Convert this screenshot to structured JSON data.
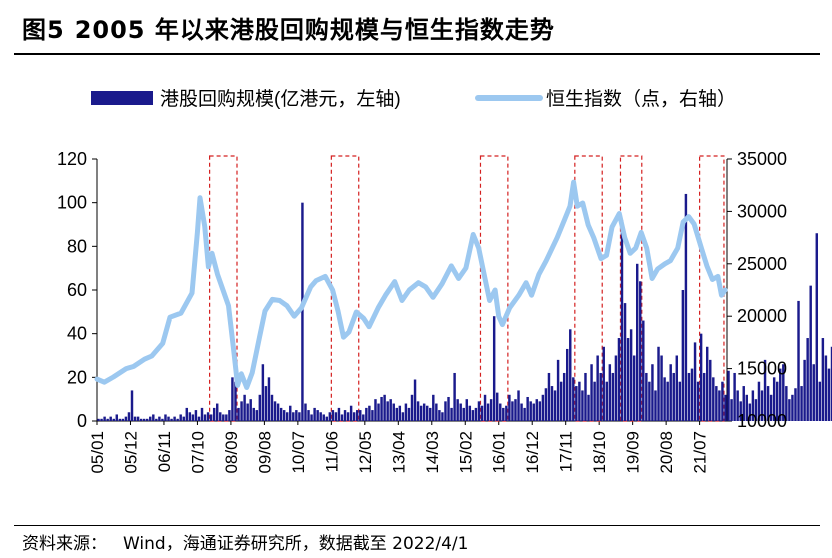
{
  "figure_label": "图5",
  "title": "2005 年以来港股回购规模与恒生指数走势",
  "source_label": "资料来源：",
  "source_text": "Wind，海通证券研究所，数据截至 2022/4/1",
  "colors": {
    "bar": "#1a1a8c",
    "line": "#9cc8f0",
    "box": "#d42020",
    "axis": "#000000"
  },
  "chart_data": {
    "type": "bar+line",
    "title": "2005 年以来港股回购规模与恒生指数走势",
    "legend_position": "top",
    "x_ticks": [
      "05/01",
      "05/12",
      "06/11",
      "07/10",
      "08/09",
      "09/08",
      "10/07",
      "11/06",
      "12/05",
      "13/04",
      "14/03",
      "15/02",
      "16/01",
      "16/12",
      "17/11",
      "18/10",
      "19/09",
      "20/08",
      "21/07"
    ],
    "x_start": 2005.0,
    "x_end": 2022.25,
    "y_left": {
      "label": "港股回购规模(亿港元，左轴)",
      "ticks": [
        0,
        20,
        40,
        60,
        80,
        100,
        120
      ],
      "range": [
        0,
        120
      ]
    },
    "y_right": {
      "label": "恒生指数（点，右轴）",
      "ticks": [
        10000,
        15000,
        20000,
        25000,
        30000,
        35000
      ],
      "range": [
        10000,
        35000
      ]
    },
    "series": [
      {
        "name": "港股回购规模(亿港元，左轴)",
        "kind": "bar",
        "axis": "left",
        "values": [
          1,
          1,
          2,
          1,
          2,
          1,
          3,
          1,
          1,
          2,
          4,
          14,
          2,
          2,
          1,
          1,
          1,
          2,
          3,
          1,
          2,
          1,
          3,
          2,
          1,
          2,
          1,
          3,
          2,
          6,
          4,
          3,
          5,
          2,
          6,
          3,
          4,
          3,
          6,
          8,
          4,
          3,
          3,
          5,
          20,
          18,
          6,
          9,
          12,
          8,
          10,
          6,
          5,
          12,
          26,
          16,
          20,
          12,
          9,
          8,
          6,
          5,
          4,
          7,
          4,
          5,
          4,
          100,
          8,
          5,
          3,
          6,
          5,
          4,
          3,
          2,
          4,
          5,
          4,
          6,
          3,
          5,
          4,
          7,
          4,
          5,
          5,
          3,
          6,
          7,
          5,
          10,
          8,
          11,
          12,
          9,
          10,
          8,
          6,
          7,
          4,
          8,
          6,
          12,
          19,
          9,
          7,
          8,
          7,
          6,
          12,
          8,
          5,
          4,
          9,
          11,
          6,
          22,
          10,
          8,
          6,
          10,
          7,
          5,
          6,
          9,
          7,
          12,
          8,
          10,
          48,
          13,
          8,
          6,
          7,
          12,
          9,
          10,
          14,
          8,
          6,
          11,
          9,
          8,
          10,
          9,
          12,
          15,
          22,
          16,
          14,
          28,
          18,
          22,
          33,
          42,
          20,
          16,
          18,
          14,
          22,
          12,
          26,
          18,
          30,
          22,
          34,
          18,
          26,
          22,
          30,
          38,
          92,
          54,
          38,
          42,
          30,
          72,
          64,
          46,
          22,
          18,
          26,
          14,
          34,
          30,
          20,
          18,
          26,
          22,
          30,
          18,
          60,
          104,
          22,
          24,
          36,
          18,
          40,
          22,
          34,
          28,
          20,
          16,
          14,
          18,
          12,
          23,
          10,
          22,
          14,
          9,
          16,
          12,
          8,
          14,
          10,
          18,
          14,
          28,
          16,
          12,
          20,
          18,
          24,
          26,
          16,
          10,
          12,
          15,
          55,
          16,
          28,
          38,
          62,
          26,
          86,
          18,
          38,
          30,
          24,
          34,
          36,
          62,
          24,
          58,
          22,
          44,
          10
        ]
      },
      {
        "name": "恒生指数（点，右轴）",
        "kind": "line",
        "axis": "right",
        "points": [
          [
            2005.0,
            14000
          ],
          [
            2005.2,
            13700
          ],
          [
            2005.45,
            14200
          ],
          [
            2005.8,
            15000
          ],
          [
            2006.0,
            15200
          ],
          [
            2006.3,
            15900
          ],
          [
            2006.5,
            16200
          ],
          [
            2006.8,
            17400
          ],
          [
            2007.0,
            19900
          ],
          [
            2007.3,
            20300
          ],
          [
            2007.6,
            22200
          ],
          [
            2007.75,
            28000
          ],
          [
            2007.82,
            31300
          ],
          [
            2007.95,
            28600
          ],
          [
            2008.05,
            24700
          ],
          [
            2008.15,
            26000
          ],
          [
            2008.3,
            24000
          ],
          [
            2008.45,
            22500
          ],
          [
            2008.6,
            21000
          ],
          [
            2008.75,
            16500
          ],
          [
            2008.85,
            13400
          ],
          [
            2008.95,
            14500
          ],
          [
            2009.1,
            13200
          ],
          [
            2009.25,
            14600
          ],
          [
            2009.45,
            18000
          ],
          [
            2009.6,
            20500
          ],
          [
            2009.8,
            21600
          ],
          [
            2010.0,
            21500
          ],
          [
            2010.2,
            21000
          ],
          [
            2010.4,
            20000
          ],
          [
            2010.6,
            20800
          ],
          [
            2010.85,
            22800
          ],
          [
            2011.0,
            23400
          ],
          [
            2011.25,
            23800
          ],
          [
            2011.45,
            22500
          ],
          [
            2011.6,
            20500
          ],
          [
            2011.75,
            18000
          ],
          [
            2011.9,
            18500
          ],
          [
            2012.1,
            20400
          ],
          [
            2012.3,
            19800
          ],
          [
            2012.45,
            19000
          ],
          [
            2012.7,
            20800
          ],
          [
            2012.9,
            22000
          ],
          [
            2013.15,
            23300
          ],
          [
            2013.35,
            21500
          ],
          [
            2013.55,
            22500
          ],
          [
            2013.8,
            23200
          ],
          [
            2014.0,
            22800
          ],
          [
            2014.2,
            21800
          ],
          [
            2014.45,
            23100
          ],
          [
            2014.7,
            24800
          ],
          [
            2014.9,
            23600
          ],
          [
            2015.1,
            24600
          ],
          [
            2015.3,
            27800
          ],
          [
            2015.45,
            26500
          ],
          [
            2015.6,
            24000
          ],
          [
            2015.75,
            21500
          ],
          [
            2015.9,
            22500
          ],
          [
            2016.0,
            20000
          ],
          [
            2016.1,
            19200
          ],
          [
            2016.3,
            20800
          ],
          [
            2016.55,
            22000
          ],
          [
            2016.75,
            23200
          ],
          [
            2016.9,
            22000
          ],
          [
            2017.1,
            24000
          ],
          [
            2017.3,
            25300
          ],
          [
            2017.6,
            27500
          ],
          [
            2017.8,
            29200
          ],
          [
            2017.95,
            30500
          ],
          [
            2018.05,
            32800
          ],
          [
            2018.15,
            30500
          ],
          [
            2018.3,
            30800
          ],
          [
            2018.45,
            28700
          ],
          [
            2018.6,
            27500
          ],
          [
            2018.8,
            25500
          ],
          [
            2018.95,
            25800
          ],
          [
            2019.1,
            28500
          ],
          [
            2019.3,
            29800
          ],
          [
            2019.45,
            27500
          ],
          [
            2019.6,
            26000
          ],
          [
            2019.75,
            26500
          ],
          [
            2019.9,
            28000
          ],
          [
            2020.05,
            26500
          ],
          [
            2020.2,
            23600
          ],
          [
            2020.35,
            24500
          ],
          [
            2020.55,
            25000
          ],
          [
            2020.7,
            25300
          ],
          [
            2020.9,
            26500
          ],
          [
            2021.05,
            29000
          ],
          [
            2021.2,
            29500
          ],
          [
            2021.35,
            28800
          ],
          [
            2021.55,
            26500
          ],
          [
            2021.7,
            24800
          ],
          [
            2021.85,
            23500
          ],
          [
            2022.0,
            23800
          ],
          [
            2022.1,
            22000
          ],
          [
            2022.2,
            22500
          ]
        ]
      }
    ],
    "highlight_boxes": [
      {
        "from": "2008/02",
        "to": "2008/11"
      },
      {
        "from": "2011/06",
        "to": "2012/03"
      },
      {
        "from": "2015/07",
        "to": "2016/04"
      },
      {
        "from": "2018/02",
        "to": "2018/11"
      },
      {
        "from": "2019/05",
        "to": "2019/12"
      },
      {
        "from": "2021/07",
        "to": "2022/03"
      }
    ]
  }
}
